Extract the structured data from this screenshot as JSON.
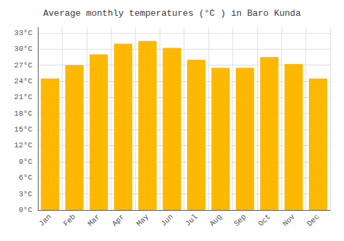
{
  "chart_data": {
    "type": "bar",
    "title": "Average monthly temperatures (°C ) in Baro Kunda",
    "categories": [
      "Jan",
      "Feb",
      "Mar",
      "Apr",
      "May",
      "Jun",
      "Jul",
      "Aug",
      "Sep",
      "Oct",
      "Nov",
      "Dec"
    ],
    "values": [
      24.5,
      27.0,
      29.0,
      31.0,
      31.5,
      30.2,
      28.0,
      26.5,
      26.5,
      28.5,
      27.2,
      24.5
    ],
    "color": "#FFB800",
    "ylim": [
      0,
      34
    ],
    "yticks": [
      {
        "value": 0,
        "label": "0°C"
      },
      {
        "value": 3,
        "label": "3°C"
      },
      {
        "value": 6,
        "label": "6°C"
      },
      {
        "value": 9,
        "label": "9°C"
      },
      {
        "value": 12,
        "label": "12°C"
      },
      {
        "value": 15,
        "label": "15°C"
      },
      {
        "value": 18,
        "label": "18°C"
      },
      {
        "value": 21,
        "label": "21°C"
      },
      {
        "value": 24,
        "label": "24°C"
      },
      {
        "value": 27,
        "label": "27°C"
      },
      {
        "value": 30,
        "label": "30°C"
      },
      {
        "value": 33,
        "label": "33°C"
      }
    ],
    "grid": true
  }
}
